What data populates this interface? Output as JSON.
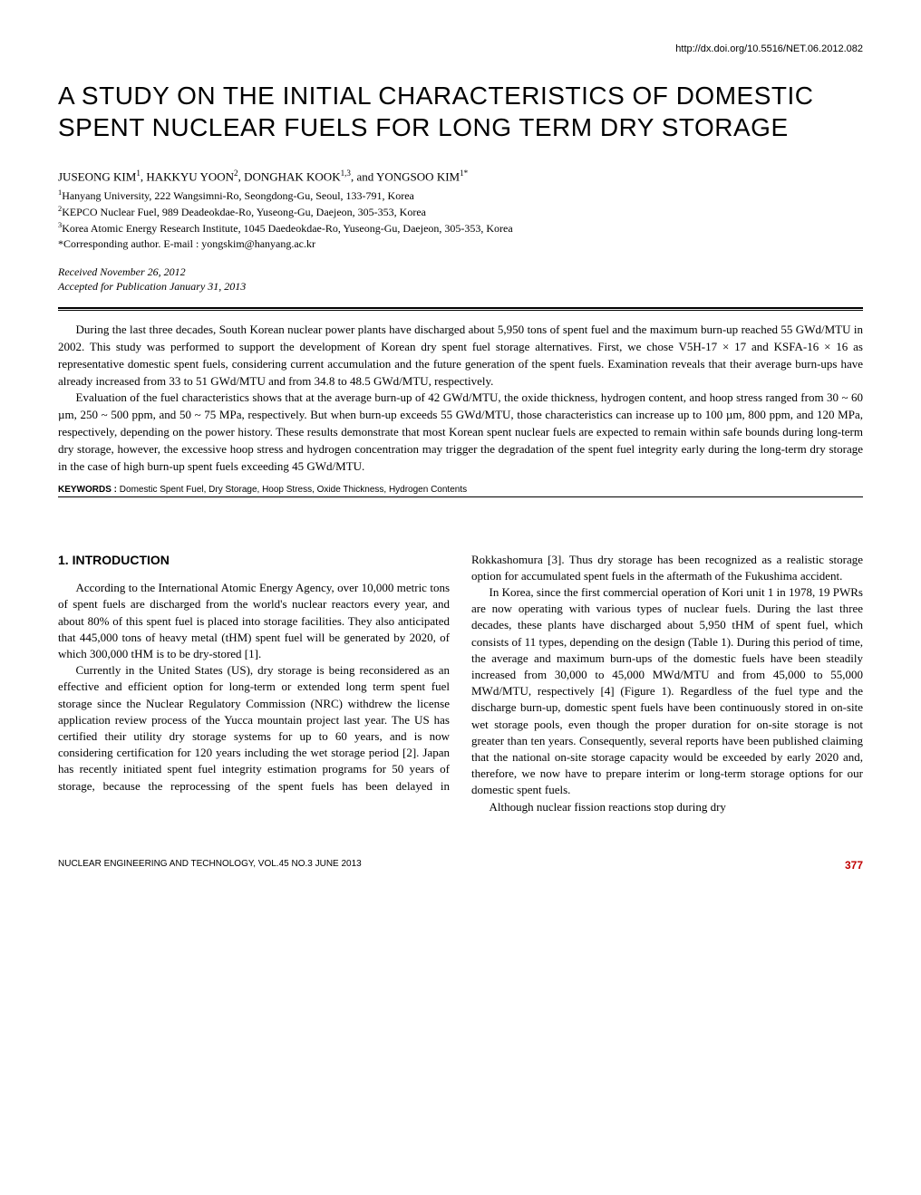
{
  "doi": "http://dx.doi.org/10.5516/NET.06.2012.082",
  "title": "A STUDY ON THE INITIAL CHARACTERISTICS OF DOMESTIC SPENT NUCLEAR FUELS FOR LONG TERM DRY STORAGE",
  "authors_html": "JUSEONG KIM<sup>1</sup>, HAKKYU YOON<sup>2</sup>, DONGHAK KOOK<sup>1,3</sup>, and YONGSOO KIM<sup>1*</sup>",
  "affiliations": [
    "Hanyang University, 222 Wangsimni-Ro, Seongdong-Gu, Seoul, 133-791, Korea",
    "KEPCO Nuclear Fuel, 989 Deadeokdae-Ro, Yuseong-Gu, Daejeon, 305-353, Korea",
    "Korea Atomic Energy Research Institute, 1045 Daedeokdae-Ro, Yuseong-Gu, Daejeon, 305-353, Korea"
  ],
  "corresponding": "*Corresponding author. E-mail : yongskim@hanyang.ac.kr",
  "received": "Received November 26, 2012",
  "accepted": "Accepted for Publication January 31, 2013",
  "abstract_paragraphs": [
    "During the last three decades, South Korean nuclear power plants have discharged about 5,950 tons of spent fuel and the maximum burn-up reached 55 GWd/MTU in 2002. This study was performed to support the development of Korean dry spent fuel storage alternatives. First, we chose V5H-17 × 17 and KSFA-16 × 16 as representative domestic spent fuels, considering current accumulation and the future generation of the spent fuels. Examination reveals that their average burn-ups have already increased from 33 to 51 GWd/MTU and from 34.8 to 48.5 GWd/MTU, respectively.",
    "Evaluation of the fuel characteristics shows that at the average burn-up of 42 GWd/MTU, the oxide thickness, hydrogen content, and hoop stress ranged from 30 ~ 60 µm, 250 ~ 500 ppm, and 50 ~ 75 MPa, respectively. But when burn-up exceeds 55 GWd/MTU, those characteristics can increase up to 100 µm, 800 ppm, and 120 MPa, respectively, depending on the power history. These results demonstrate that most Korean spent nuclear fuels are expected to remain within safe bounds during long-term dry storage, however, the excessive hoop stress and hydrogen concentration may trigger the degradation of the spent fuel integrity early during the long-term dry storage in the case of high burn-up spent fuels exceeding 45 GWd/MTU."
  ],
  "keywords_label": "KEYWORDS :",
  "keywords": "Domestic Spent Fuel, Dry Storage, Hoop Stress, Oxide Thickness, Hydrogen Contents",
  "section_heading": "1. INTRODUCTION",
  "body_paragraphs": [
    "According to the International Atomic Energy Agency, over 10,000 metric tons of spent fuels are discharged from the world's nuclear reactors every year, and about 80% of this spent fuel is placed into storage facilities. They also anticipated that 445,000 tons of heavy metal (tHM) spent fuel will be generated by 2020, of which 300,000 tHM is to be dry-stored [1].",
    "Currently in the United States (US), dry storage is being reconsidered as an effective and efficient option for long-term or extended long term spent fuel storage since the Nuclear Regulatory Commission (NRC) withdrew the license application review process of the Yucca mountain project last year. The US has certified their utility dry storage systems for up to 60 years, and is now considering certification for 120 years including the wet storage period [2]. Japan has recently initiated spent fuel integrity estimation programs for 50 years of storage, because the reprocessing of the spent fuels has been delayed in Rokkashomura [3]. Thus dry storage has been recognized as a realistic storage option for accumulated spent fuels in the aftermath of the Fukushima accident.",
    "In Korea, since the first commercial operation of Kori unit 1 in 1978, 19 PWRs are now operating with various types of nuclear fuels. During the last three decades, these plants have discharged about 5,950 tHM of spent fuel, which consists of 11 types, depending on the design (Table 1). During this period of time, the average and maximum burn-ups of the domestic fuels have been steadily increased from 30,000 to 45,000 MWd/MTU and from 45,000 to 55,000 MWd/MTU, respectively [4] (Figure 1). Regardless of the fuel type and the discharge burn-up, domestic spent fuels have been continuously stored in on-site wet storage pools, even though the proper duration for on-site storage is not greater than ten years. Consequently, several reports have been published claiming that the national on-site storage capacity would be exceeded by early 2020 and, therefore, we now have to prepare interim or long-term storage options for our domestic spent fuels.",
    "Although nuclear fission reactions stop during dry"
  ],
  "footer_journal": "NUCLEAR ENGINEERING AND TECHNOLOGY,  VOL.45  NO.3  JUNE 2013",
  "footer_page": "377",
  "colors": {
    "page_number": "#c00000",
    "text": "#000000",
    "background": "#ffffff"
  }
}
